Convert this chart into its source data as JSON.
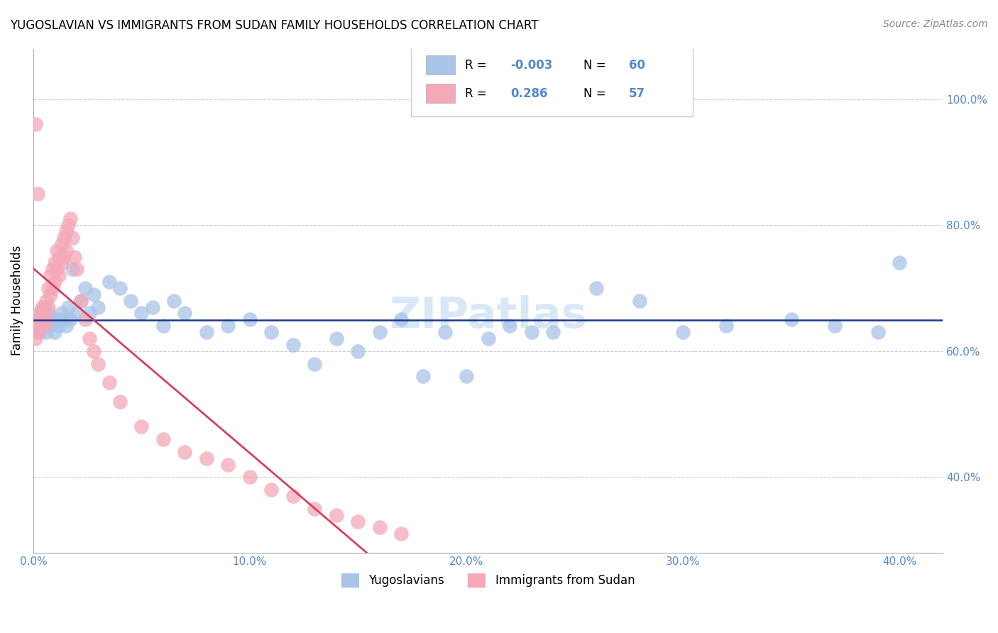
{
  "title": "YUGOSLAVIAN VS IMMIGRANTS FROM SUDAN FAMILY HOUSEHOLDS CORRELATION CHART",
  "source": "Source: ZipAtlas.com",
  "ylabel": "Family Households",
  "xlim": [
    0.0,
    0.42
  ],
  "ylim": [
    0.28,
    1.08
  ],
  "ytick_vals": [
    0.4,
    0.6,
    0.8,
    1.0
  ],
  "ytick_labels": [
    "40.0%",
    "60.0%",
    "80.0%",
    "100.0%"
  ],
  "xtick_vals": [
    0.0,
    0.1,
    0.2,
    0.3,
    0.4
  ],
  "xtick_labels": [
    "0.0%",
    "10.0%",
    "20.0%",
    "30.0%",
    "40.0%"
  ],
  "legend_R1": "-0.003",
  "legend_N1": "60",
  "legend_R2": "0.286",
  "legend_N2": "57",
  "blue_fill": "#a8c4e8",
  "pink_fill": "#f4a8b8",
  "blue_line_color": "#1a3a8a",
  "pink_line_color": "#d44060",
  "tick_color": "#5588cc",
  "watermark_color": "#c0d8f0",
  "grid_color": "#cccccc",
  "blue_x": [
    0.001,
    0.002,
    0.003,
    0.003,
    0.004,
    0.005,
    0.005,
    0.006,
    0.006,
    0.007,
    0.008,
    0.009,
    0.01,
    0.011,
    0.012,
    0.013,
    0.014,
    0.015,
    0.016,
    0.017,
    0.018,
    0.02,
    0.022,
    0.024,
    0.026,
    0.028,
    0.03,
    0.035,
    0.04,
    0.045,
    0.05,
    0.055,
    0.06,
    0.065,
    0.07,
    0.08,
    0.09,
    0.1,
    0.11,
    0.12,
    0.13,
    0.14,
    0.15,
    0.16,
    0.17,
    0.18,
    0.19,
    0.2,
    0.22,
    0.24,
    0.26,
    0.28,
    0.3,
    0.32,
    0.35,
    0.37,
    0.39,
    0.4,
    0.21,
    0.23
  ],
  "blue_y": [
    0.64,
    0.65,
    0.63,
    0.66,
    0.65,
    0.64,
    0.67,
    0.65,
    0.63,
    0.66,
    0.64,
    0.65,
    0.63,
    0.65,
    0.64,
    0.66,
    0.65,
    0.64,
    0.67,
    0.65,
    0.73,
    0.66,
    0.68,
    0.7,
    0.66,
    0.69,
    0.67,
    0.71,
    0.7,
    0.68,
    0.66,
    0.67,
    0.64,
    0.68,
    0.66,
    0.63,
    0.64,
    0.65,
    0.63,
    0.61,
    0.58,
    0.62,
    0.6,
    0.63,
    0.65,
    0.56,
    0.63,
    0.56,
    0.64,
    0.63,
    0.7,
    0.68,
    0.63,
    0.64,
    0.65,
    0.64,
    0.63,
    0.74,
    0.62,
    0.63
  ],
  "pink_x": [
    0.001,
    0.001,
    0.002,
    0.002,
    0.003,
    0.003,
    0.004,
    0.004,
    0.005,
    0.005,
    0.006,
    0.006,
    0.007,
    0.007,
    0.008,
    0.008,
    0.009,
    0.009,
    0.01,
    0.01,
    0.011,
    0.011,
    0.012,
    0.012,
    0.013,
    0.013,
    0.014,
    0.014,
    0.015,
    0.015,
    0.016,
    0.017,
    0.018,
    0.019,
    0.02,
    0.022,
    0.024,
    0.026,
    0.028,
    0.03,
    0.035,
    0.04,
    0.05,
    0.06,
    0.07,
    0.08,
    0.09,
    0.1,
    0.11,
    0.12,
    0.13,
    0.14,
    0.15,
    0.16,
    0.001,
    0.002,
    0.17
  ],
  "pink_y": [
    0.64,
    0.62,
    0.65,
    0.63,
    0.66,
    0.64,
    0.67,
    0.65,
    0.66,
    0.64,
    0.68,
    0.65,
    0.7,
    0.67,
    0.72,
    0.69,
    0.73,
    0.7,
    0.74,
    0.71,
    0.76,
    0.73,
    0.75,
    0.72,
    0.77,
    0.74,
    0.78,
    0.75,
    0.79,
    0.76,
    0.8,
    0.81,
    0.78,
    0.75,
    0.73,
    0.68,
    0.65,
    0.62,
    0.6,
    0.58,
    0.55,
    0.52,
    0.48,
    0.46,
    0.44,
    0.43,
    0.42,
    0.4,
    0.38,
    0.37,
    0.35,
    0.34,
    0.33,
    0.32,
    0.96,
    0.85,
    0.31
  ]
}
